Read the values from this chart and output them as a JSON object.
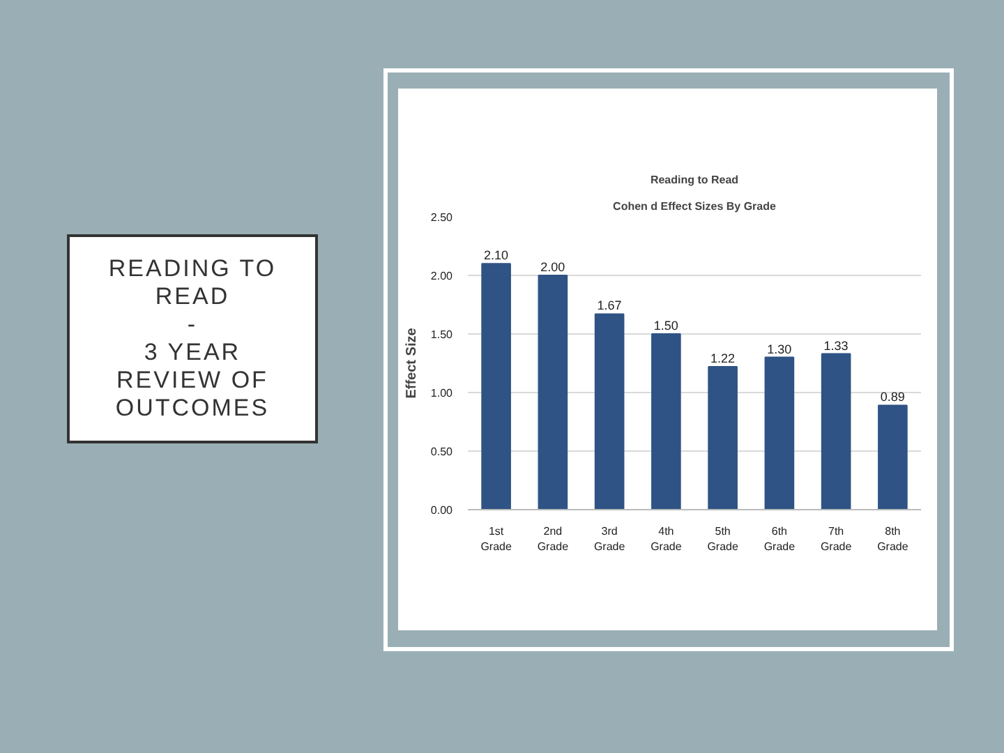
{
  "chart_data": {
    "type": "bar",
    "title": "Reading to Read",
    "subtitle": "Cohen d Effect Sizes By Grade",
    "ylabel": "Effect Size",
    "categories": [
      "1st Grade",
      "2nd Grade",
      "3rd Grade",
      "4th Grade",
      "5th Grade",
      "6th Grade",
      "7th Grade",
      "8th Grade"
    ],
    "values": [
      2.1,
      2.0,
      1.67,
      1.5,
      1.22,
      1.3,
      1.33,
      0.89
    ],
    "value_labels": [
      "2.10",
      "2.00",
      "1.67",
      "1.50",
      "1.22",
      "1.30",
      "1.33",
      "0.89"
    ],
    "color": "#2f5384",
    "ylim": [
      0,
      2.5
    ],
    "yticks": [
      {
        "value": 0,
        "label": "0.00"
      },
      {
        "value": 0.5,
        "label": "0.50"
      },
      {
        "value": 1,
        "label": "1.00"
      },
      {
        "value": 1.5,
        "label": "1.50"
      },
      {
        "value": 2,
        "label": "2.00"
      },
      {
        "value": 2.5,
        "label": "2.50"
      }
    ],
    "grid": "y",
    "annotations": [
      "READING TO\nREAD\n-\n3 YEAR\nREVIEW OF\nOUTCOMES"
    ]
  }
}
